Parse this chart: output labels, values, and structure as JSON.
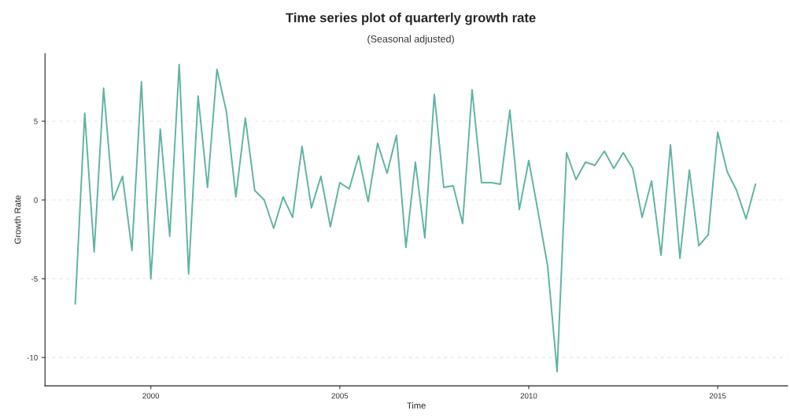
{
  "chart_data": {
    "type": "line",
    "title": "Time series plot of quarterly growth rate",
    "subtitle": "(Seasonal adjusted)",
    "xlabel": "Time",
    "ylabel": "Growth Rate",
    "x": [
      1998.0,
      1998.25,
      1998.5,
      1998.75,
      1999.0,
      1999.25,
      1999.5,
      1999.75,
      2000.0,
      2000.25,
      2000.5,
      2000.75,
      2001.0,
      2001.25,
      2001.5,
      2001.75,
      2002.0,
      2002.25,
      2002.5,
      2002.75,
      2003.0,
      2003.25,
      2003.5,
      2003.75,
      2004.0,
      2004.25,
      2004.5,
      2004.75,
      2005.0,
      2005.25,
      2005.5,
      2005.75,
      2006.0,
      2006.25,
      2006.5,
      2006.75,
      2007.0,
      2007.25,
      2007.5,
      2007.75,
      2008.0,
      2008.25,
      2008.5,
      2008.75,
      2009.0,
      2009.25,
      2009.5,
      2009.75,
      2010.0,
      2010.25,
      2010.5,
      2010.75,
      2011.0,
      2011.25,
      2011.5,
      2011.75,
      2012.0,
      2012.25,
      2012.5,
      2012.75,
      2013.0,
      2013.25,
      2013.5,
      2013.75,
      2014.0,
      2014.25,
      2014.5,
      2014.75,
      2015.0,
      2015.25,
      2015.5,
      2015.75,
      2016.0
    ],
    "series": [
      {
        "color": "#5fb3a3",
        "values": [
          -6.6,
          5.5,
          -3.3,
          7.1,
          0.0,
          1.5,
          -3.2,
          7.5,
          -5.0,
          4.5,
          -2.3,
          8.6,
          -4.7,
          6.6,
          0.8,
          8.3,
          5.6,
          0.2,
          5.2,
          0.6,
          0.0,
          -1.8,
          0.2,
          -1.1,
          3.4,
          -0.5,
          1.5,
          -1.7,
          1.1,
          0.7,
          2.8,
          -0.1,
          3.6,
          1.7,
          4.1,
          -3.0,
          2.4,
          -2.4,
          6.7,
          0.8,
          0.9,
          -1.5,
          7.0,
          1.1,
          1.1,
          1.0,
          5.7,
          -0.6,
          2.5,
          -0.8,
          -4.2,
          -10.9,
          3.0,
          1.3,
          2.4,
          2.2,
          3.1,
          2.0,
          3.0,
          2.0,
          -1.1,
          1.2,
          -3.5,
          3.5,
          -3.7,
          1.9,
          -2.9,
          -2.2,
          4.3,
          1.8,
          0.6,
          -1.2,
          1.0
        ]
      }
    ],
    "xlim": [
      1997.2,
      2016.85
    ],
    "xticks": [
      2000,
      2005,
      2010,
      2015
    ],
    "ylim": [
      -11.8,
      9.3
    ],
    "yticks": [
      {
        "value": -10,
        "label": "-10"
      },
      {
        "value": -5,
        "label": "-5"
      },
      0,
      5
    ],
    "grid": "y",
    "marker": "none",
    "line_style": "solid"
  }
}
